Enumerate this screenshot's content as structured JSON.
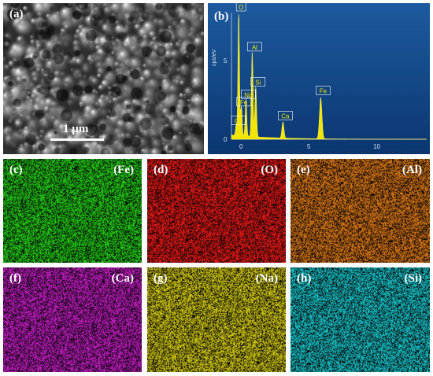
{
  "sem": {
    "label": "(a)",
    "scale_bar": "1 µm"
  },
  "spectrum_panel": {
    "label": "(b)"
  },
  "chart_data": {
    "type": "bar",
    "ylabel": "cps/eV",
    "xlim": [
      0,
      14
    ],
    "ylim": [
      0,
      10
    ],
    "x_ticks": [
      "0",
      "5",
      "10"
    ],
    "y_ticks": [
      "0",
      "5"
    ],
    "peaks": [
      {
        "element": "O",
        "x": 0.52,
        "y": 10.0
      },
      {
        "element": "Al",
        "x": 1.49,
        "y": 6.8
      },
      {
        "element": "Si",
        "x": 1.74,
        "y": 4.0
      },
      {
        "element": "Na",
        "x": 1.04,
        "y": 3.0
      },
      {
        "element": "Fe",
        "x": 0.71,
        "y": 2.4
      },
      {
        "element": "Ca",
        "x": 0.34,
        "y": 0.9
      },
      {
        "element": "Ca",
        "x": 3.69,
        "y": 1.3
      },
      {
        "element": "Fe",
        "x": 6.4,
        "y": 3.3
      }
    ]
  },
  "maps": [
    {
      "label": "(c)",
      "element": "(Fe)",
      "color": "#26d219"
    },
    {
      "label": "(d)",
      "element": "(O)",
      "color": "#ee1a1a"
    },
    {
      "label": "(e)",
      "element": "(Al)",
      "color": "#e07b17"
    },
    {
      "label": "(f)",
      "element": "(Ca)",
      "color": "#c61fc6"
    },
    {
      "label": "(g)",
      "element": "(Na)",
      "color": "#d8cf14"
    },
    {
      "label": "(h)",
      "element": "(Si)",
      "color": "#19c9cf"
    }
  ]
}
